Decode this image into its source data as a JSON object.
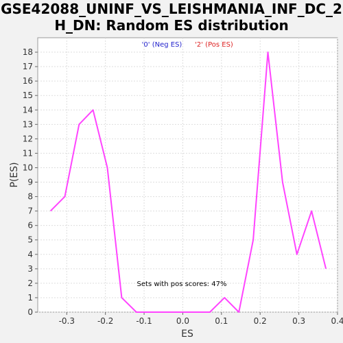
{
  "chart_data": {
    "type": "line",
    "title_line1": "GSE42088_UNINF_VS_LEISHMANIA_INF_DC_2",
    "title_line2": "H_DN: Random ES distribution",
    "xlabel": "ES",
    "ylabel": "P(ES)",
    "xlim": [
      -0.375,
      0.4
    ],
    "ylim": [
      0,
      19
    ],
    "xticks": [
      -0.3,
      -0.2,
      -0.1,
      0.0,
      0.1,
      0.2,
      0.3,
      0.4
    ],
    "xtick_labels": [
      "-0.3",
      "-0.2",
      "-0.1",
      "0.0",
      "0.1",
      "0.2",
      "0.3",
      "0.4"
    ],
    "yticks": [
      0,
      1,
      2,
      3,
      4,
      5,
      6,
      7,
      8,
      9,
      10,
      11,
      12,
      13,
      14,
      15,
      16,
      17,
      18
    ],
    "ytick_labels": [
      "0",
      "1",
      "2",
      "3",
      "4",
      "5",
      "6",
      "7",
      "8",
      "9",
      "10",
      "11",
      "12",
      "13",
      "14",
      "15",
      "16",
      "17",
      "18"
    ],
    "grid": true,
    "legend": [
      {
        "label": "'0' (Neg ES)",
        "color": "#2222cc"
      },
      {
        "label": "'2' (Pos ES)",
        "color": "#dd2222"
      }
    ],
    "annotation": "Sets with pos scores: 47%",
    "series": [
      {
        "color": "#ff44ff",
        "x": [
          -0.342,
          -0.305,
          -0.268,
          -0.232,
          -0.195,
          -0.158,
          -0.12,
          -0.083,
          -0.046,
          -0.009,
          0.028,
          0.07,
          0.108,
          0.145,
          0.182,
          0.22,
          0.258,
          0.295,
          0.333,
          0.37
        ],
        "y": [
          7,
          8,
          13,
          14,
          10,
          1,
          0,
          0,
          0,
          0,
          0,
          0,
          1,
          0,
          5,
          18,
          9,
          4,
          7,
          3
        ]
      }
    ]
  }
}
